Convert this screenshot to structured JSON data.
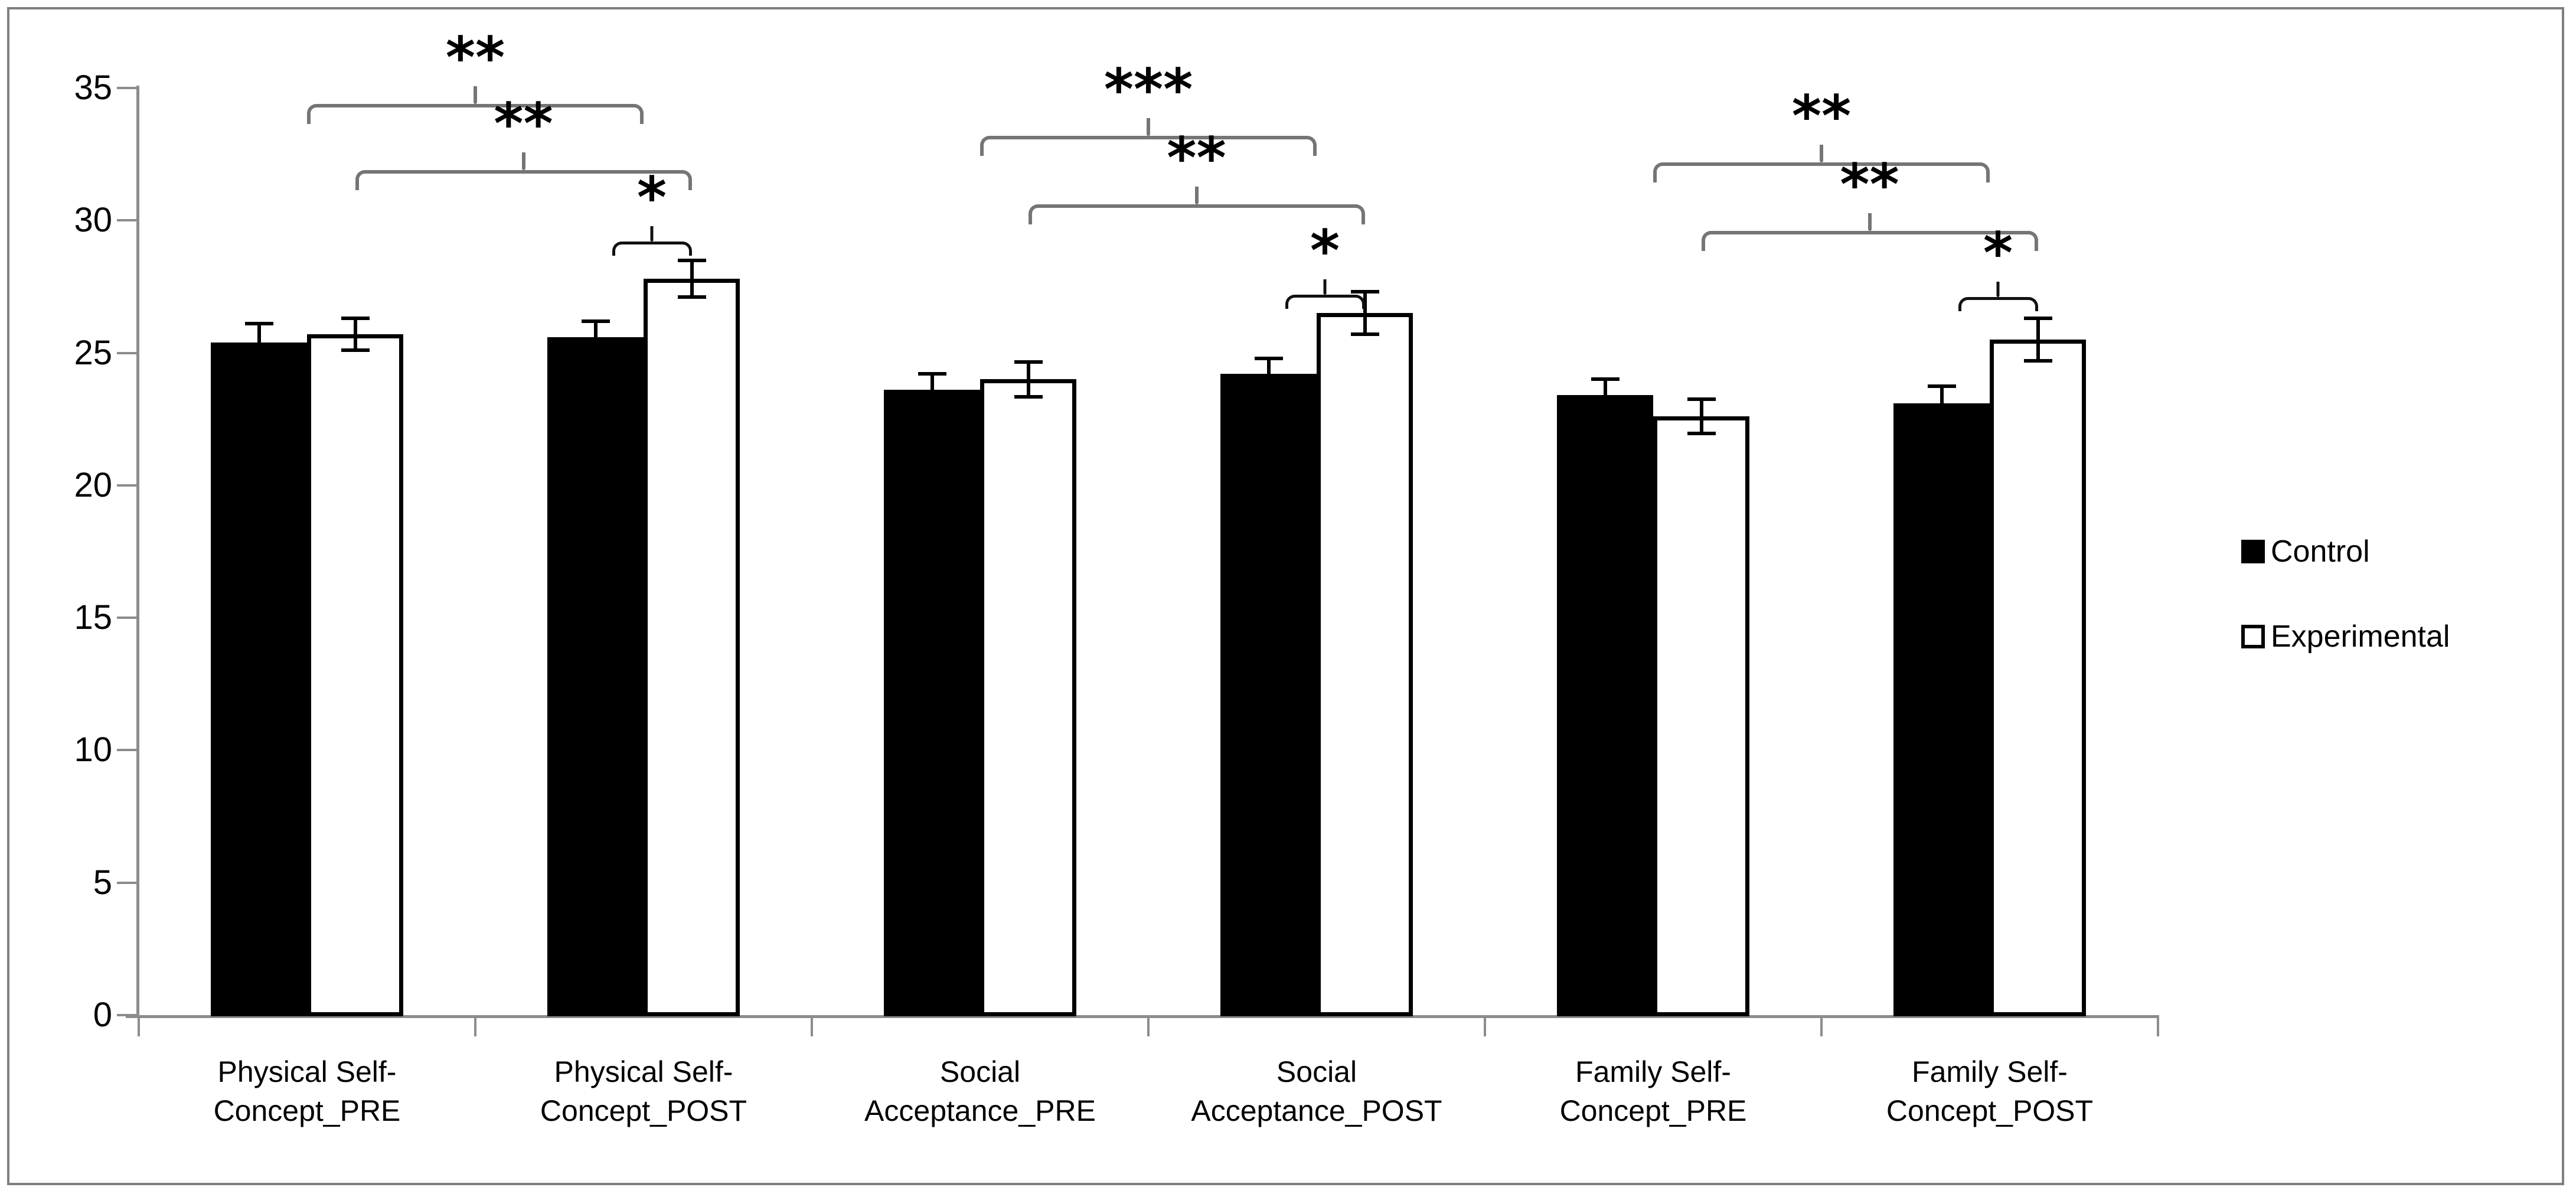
{
  "chart_data": {
    "type": "bar",
    "title": "",
    "xlabel": "",
    "ylabel": "",
    "ylim": [
      0,
      35
    ],
    "yticks": [
      0,
      5,
      10,
      15,
      20,
      25,
      30,
      35
    ],
    "grid": false,
    "legend_position": "right",
    "categories": [
      "Physical Self-Concept_PRE",
      "Physical Self-Concept_POST",
      "Social Acceptance_PRE",
      "Social Acceptance_POST",
      "Family Self-Concept_PRE",
      "Family Self-Concept_POST"
    ],
    "category_label_lines": [
      [
        "Physical Self-",
        "Concept_PRE"
      ],
      [
        "Physical Self-",
        "Concept_POST"
      ],
      [
        "Social",
        "Acceptance_PRE"
      ],
      [
        "Social",
        "Acceptance_POST"
      ],
      [
        "Family Self-",
        "Concept_PRE"
      ],
      [
        "Family Self-",
        "Concept_POST"
      ]
    ],
    "series": [
      {
        "name": "Control",
        "fill": "#000000",
        "values": [
          25.4,
          25.6,
          23.6,
          24.2,
          23.4,
          23.1
        ],
        "errors": [
          0.7,
          0.6,
          0.6,
          0.6,
          0.6,
          0.65
        ]
      },
      {
        "name": "Experimental",
        "fill": "#ffffff",
        "values": [
          25.7,
          27.8,
          24.0,
          26.5,
          22.6,
          25.5
        ],
        "errors": [
          0.6,
          0.7,
          0.65,
          0.8,
          0.65,
          0.8
        ]
      }
    ],
    "significance_brackets": [
      {
        "label": "**",
        "style": "large",
        "x1": {
          "cat": 0,
          "anchor": "group"
        },
        "x2": {
          "cat": 1,
          "anchor": "group"
        },
        "level": 34.4
      },
      {
        "label": "**",
        "style": "large",
        "x1": {
          "cat": 0,
          "anchor": "experimental"
        },
        "x2": {
          "cat": 1,
          "anchor": "experimental"
        },
        "level": 31.9
      },
      {
        "label": "*",
        "style": "small",
        "x1": {
          "cat": 1,
          "anchor": "control"
        },
        "x2": {
          "cat": 1,
          "anchor": "experimental"
        },
        "level": 29.2
      },
      {
        "label": "***",
        "style": "large",
        "x1": {
          "cat": 2,
          "anchor": "group"
        },
        "x2": {
          "cat": 3,
          "anchor": "group"
        },
        "level": 33.2
      },
      {
        "label": "**",
        "style": "large",
        "x1": {
          "cat": 2,
          "anchor": "experimental"
        },
        "x2": {
          "cat": 3,
          "anchor": "experimental"
        },
        "level": 30.6
      },
      {
        "label": "*",
        "style": "small",
        "x1": {
          "cat": 3,
          "anchor": "control"
        },
        "x2": {
          "cat": 3,
          "anchor": "experimental"
        },
        "level": 27.2
      },
      {
        "label": "**",
        "style": "large",
        "x1": {
          "cat": 4,
          "anchor": "group"
        },
        "x2": {
          "cat": 5,
          "anchor": "group"
        },
        "level": 32.2
      },
      {
        "label": "**",
        "style": "large",
        "x1": {
          "cat": 4,
          "anchor": "experimental"
        },
        "x2": {
          "cat": 5,
          "anchor": "experimental"
        },
        "level": 29.6
      },
      {
        "label": "*",
        "style": "small",
        "x1": {
          "cat": 5,
          "anchor": "control"
        },
        "x2": {
          "cat": 5,
          "anchor": "experimental"
        },
        "level": 27.1
      }
    ],
    "legend": [
      {
        "label": "Control",
        "swatch": "filled-black"
      },
      {
        "label": "Experimental",
        "swatch": "outlined-white"
      }
    ]
  },
  "colors": {
    "bar_control": "#000000",
    "bar_experimental": "#ffffff",
    "bar_border": "#000000",
    "axis": "#8c8c8c",
    "bracket_large": "#757575",
    "bracket_small": "#111111",
    "frame": "#7f7f7f",
    "text": "#000000"
  }
}
